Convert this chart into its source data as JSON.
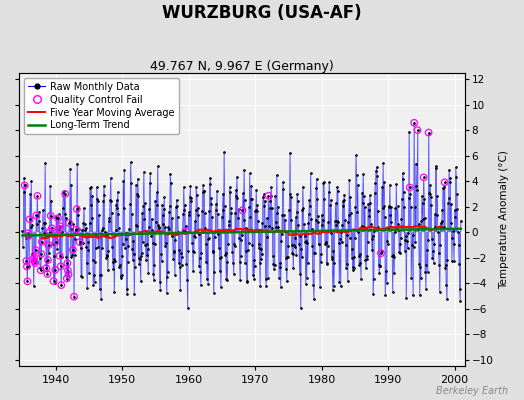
{
  "title": "WURZBURG (USA-AF)",
  "subtitle": "49.767 N, 9.967 E (Germany)",
  "ylabel": "Temperature Anomaly (°C)",
  "watermark": "Berkeley Earth",
  "ylim": [
    -10.5,
    12.5
  ],
  "yticks": [
    -10,
    -8,
    -6,
    -4,
    -2,
    0,
    2,
    4,
    6,
    8,
    10,
    12
  ],
  "xlim": [
    1934.5,
    2001.5
  ],
  "xticks": [
    1940,
    1950,
    1960,
    1970,
    1980,
    1990,
    2000
  ],
  "bg_color": "#e0e0e0",
  "plot_bg_color": "#f0f0f0",
  "raw_color": "blue",
  "qc_color": "magenta",
  "moving_avg_color": "red",
  "trend_color": "green",
  "title_fontsize": 12,
  "subtitle_fontsize": 9,
  "legend_fontsize": 7
}
